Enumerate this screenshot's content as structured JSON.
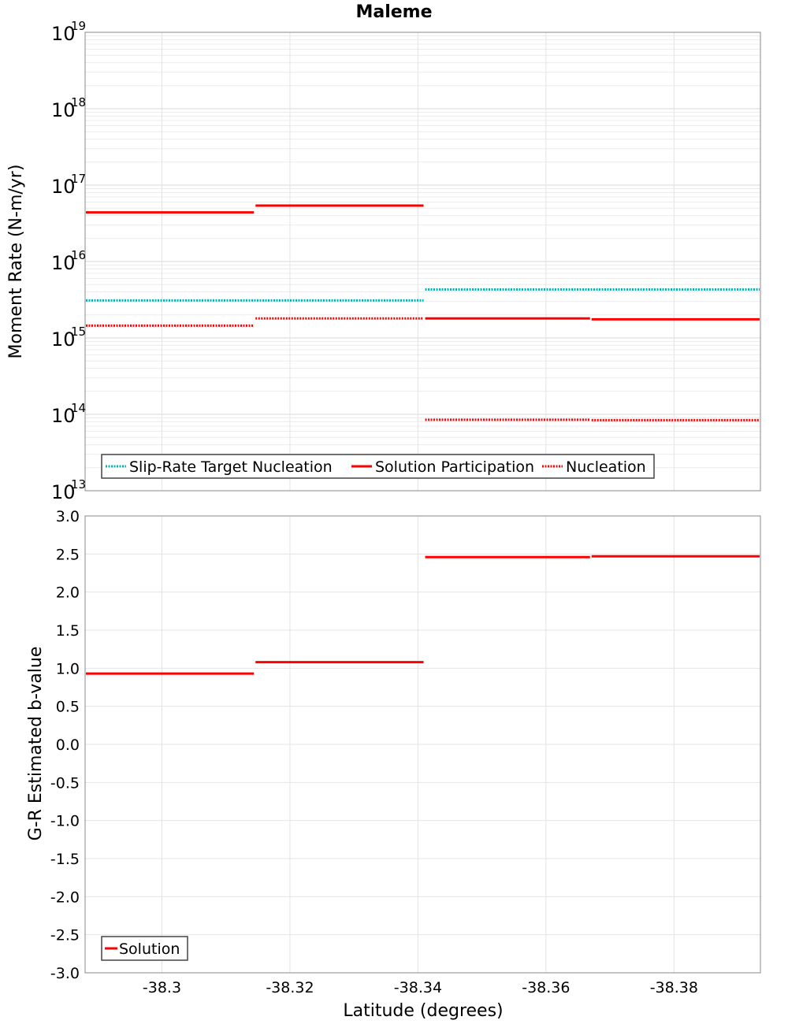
{
  "title": "Maleme",
  "chart_data": [
    {
      "type": "line",
      "ylabel": "Moment Rate (N-m/yr)",
      "xlabel": "",
      "xlim": [
        -38.288,
        -38.3935
      ],
      "ylim": [
        10000000000000.0,
        1e+19
      ],
      "yscale": "log",
      "grid": true,
      "legend_position": "bottom-left",
      "y_tick_labels": [
        {
          "base": "10",
          "exp": "19",
          "value": 1e+19
        },
        {
          "base": "10",
          "exp": "18",
          "value": 1e+18
        },
        {
          "base": "10",
          "exp": "17",
          "value": 1e+17
        },
        {
          "base": "10",
          "exp": "16",
          "value": 1e+16
        },
        {
          "base": "10",
          "exp": "15",
          "value": 1000000000000000.0
        },
        {
          "base": "10",
          "exp": "14",
          "value": 100000000000000.0
        },
        {
          "base": "10",
          "exp": "13",
          "value": 10000000000000.0
        }
      ],
      "series": [
        {
          "name": "Slip-Rate Target Nucleation",
          "color": "#00b5b8",
          "style": "dotted",
          "segments": [
            {
              "x0": -38.288,
              "x1": -38.341,
              "y": 3100000000000000.0
            },
            {
              "x0": -38.341,
              "x1": -38.3935,
              "y": 4300000000000000.0
            }
          ]
        },
        {
          "name": "Solution Participation",
          "color": "#ff0000",
          "style": "solid",
          "segments": [
            {
              "x0": -38.288,
              "x1": -38.3145,
              "y": 4.4e+16
            },
            {
              "x0": -38.3145,
              "x1": -38.341,
              "y": 5.4e+16
            },
            {
              "x0": -38.341,
              "x1": -38.367,
              "y": 1800000000000000.0
            },
            {
              "x0": -38.367,
              "x1": -38.3935,
              "y": 1750000000000000.0
            }
          ]
        },
        {
          "name": "Nucleation",
          "color": "#ff0000",
          "style": "dotted",
          "segments": [
            {
              "x0": -38.288,
              "x1": -38.3145,
              "y": 1450000000000000.0
            },
            {
              "x0": -38.3145,
              "x1": -38.341,
              "y": 1800000000000000.0
            },
            {
              "x0": -38.341,
              "x1": -38.367,
              "y": 85000000000000.0
            },
            {
              "x0": -38.367,
              "x1": -38.3935,
              "y": 84000000000000.0
            }
          ]
        }
      ]
    },
    {
      "type": "line",
      "ylabel": "G-R Estimated b-value",
      "xlabel": "Latitude (degrees)",
      "xlim": [
        -38.288,
        -38.3935
      ],
      "ylim": [
        -3.0,
        3.0
      ],
      "grid": true,
      "legend_position": "bottom-left",
      "x_ticks": [
        -38.3,
        -38.32,
        -38.34,
        -38.36,
        -38.38
      ],
      "x_tick_labels": [
        "-38.3",
        "-38.32",
        "-38.34",
        "-38.36",
        "-38.38"
      ],
      "y_ticks": [
        3.0,
        2.5,
        2.0,
        1.5,
        1.0,
        0.5,
        0.0,
        -0.5,
        -1.0,
        -1.5,
        -2.0,
        -2.5,
        -3.0
      ],
      "y_tick_labels": [
        "3.0",
        "2.5",
        "2.0",
        "1.5",
        "1.0",
        "0.5",
        "0.0",
        "-0.5",
        "-1.0",
        "-1.5",
        "-2.0",
        "-2.5",
        "-3.0"
      ],
      "series": [
        {
          "name": "Solution",
          "color": "#ff0000",
          "style": "solid",
          "segments": [
            {
              "x0": -38.288,
              "x1": -38.3145,
              "y": 0.93
            },
            {
              "x0": -38.3145,
              "x1": -38.341,
              "y": 1.08
            },
            {
              "x0": -38.341,
              "x1": -38.367,
              "y": 2.46
            },
            {
              "x0": -38.367,
              "x1": -38.3935,
              "y": 2.47
            }
          ]
        }
      ]
    }
  ]
}
